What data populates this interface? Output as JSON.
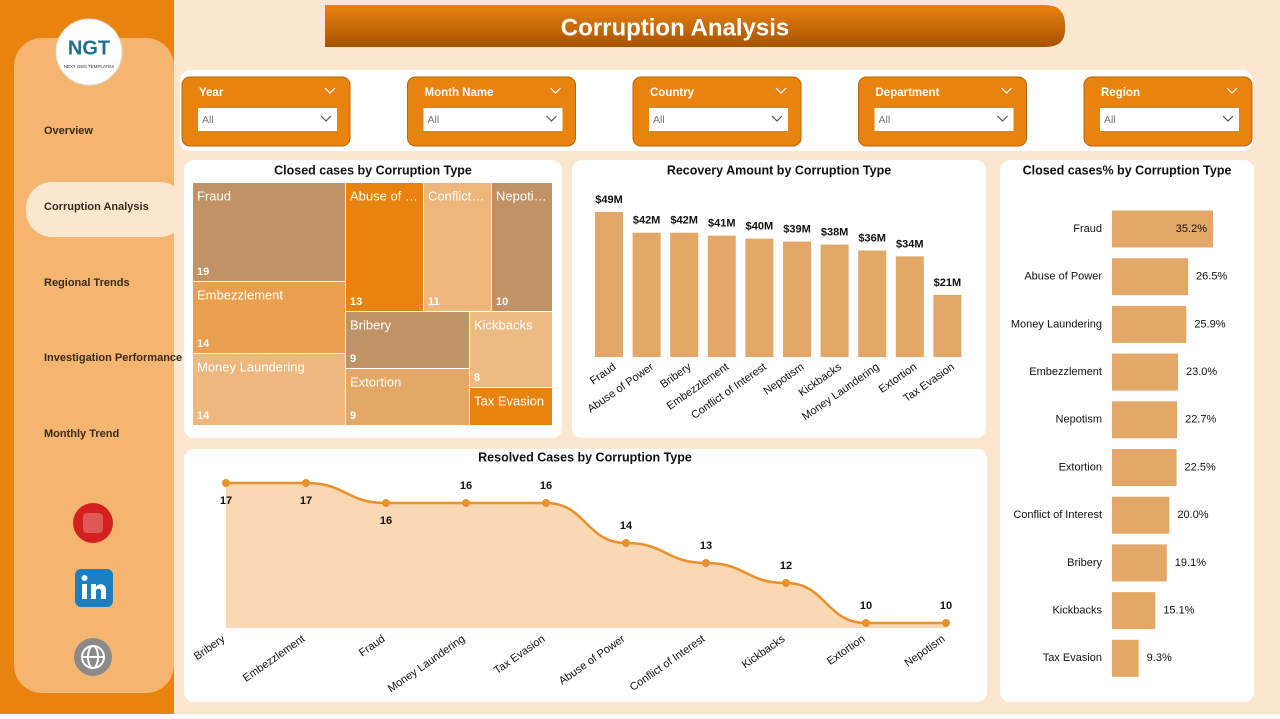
{
  "header": {
    "title": "Corruption Analysis",
    "logo": "NGT",
    "logo_subtitle": "NEXT GEN TEMPLATES"
  },
  "nav": [
    "Overview",
    "Corruption Analysis",
    "Regional Trends",
    "Investigation Performance",
    "Monthly Trend"
  ],
  "filters": [
    {
      "label": "Year",
      "value": "All"
    },
    {
      "label": "Month Name",
      "value": "All"
    },
    {
      "label": "Country",
      "value": "All"
    },
    {
      "label": "Department",
      "value": "All"
    },
    {
      "label": "Region",
      "value": "All"
    }
  ],
  "chart_data": [
    {
      "type": "treemap",
      "title": "Closed cases by Corruption Type",
      "categories": [
        "Fraud",
        "Abuse of Power",
        "Conflict of Interest",
        "Nepotism",
        "Embezzlement",
        "Money Laundering",
        "Bribery",
        "Extortion",
        "Kickbacks",
        "Tax Evasion"
      ],
      "values": [
        19,
        13,
        11,
        10,
        14,
        14,
        9,
        9,
        8,
        4
      ],
      "colors": [
        "#bf9365",
        "#e8830f",
        "#edb67a",
        "#bf9365",
        "#e8a050",
        "#edb77e",
        "#bf9365",
        "#e3a867",
        "#edba82",
        "#e8830f"
      ]
    },
    {
      "type": "bar",
      "title": "Recovery Amount by Corruption Type",
      "color": "#e3a867",
      "categories": [
        "Fraud",
        "Abuse of Power",
        "Bribery",
        "Embezzlement",
        "Conflict of Interest",
        "Nepotism",
        "Kickbacks",
        "Money Laundering",
        "Extortion",
        "Tax Evasion"
      ],
      "values": [
        49,
        42,
        42,
        41,
        40,
        39,
        38,
        36,
        34,
        21
      ],
      "value_labels": [
        "$49M",
        "$42M",
        "$42M",
        "$41M",
        "$40M",
        "$39M",
        "$38M",
        "$36M",
        "$34M",
        "$21M"
      ]
    },
    {
      "type": "hbar",
      "title": "Closed cases% by Corruption Type",
      "color": "#e3a867",
      "categories": [
        "Fraud",
        "Abuse of Power",
        "Money Laundering",
        "Embezzlement",
        "Nepotism",
        "Extortion",
        "Conflict of Interest",
        "Bribery",
        "Kickbacks",
        "Tax Evasion"
      ],
      "values": [
        35.2,
        26.5,
        25.9,
        23.0,
        22.7,
        22.5,
        20.0,
        19.1,
        15.1,
        9.3
      ],
      "value_labels": [
        "35.2%",
        "26.5%",
        "25.9%",
        "23.0%",
        "22.7%",
        "22.5%",
        "20.0%",
        "19.1%",
        "15.1%",
        "9.3%"
      ]
    },
    {
      "type": "area",
      "title": "Resolved Cases by Corruption Type",
      "color": "#e8912e",
      "categories": [
        "Bribery",
        "Embezzlement",
        "Fraud",
        "Money Laundering",
        "Tax Evasion",
        "Abuse of Power",
        "Conflict of Interest",
        "Kickbacks",
        "Extortion",
        "Nepotism"
      ],
      "values": [
        17,
        17,
        16,
        16,
        16,
        14,
        13,
        12,
        10,
        10
      ]
    }
  ]
}
